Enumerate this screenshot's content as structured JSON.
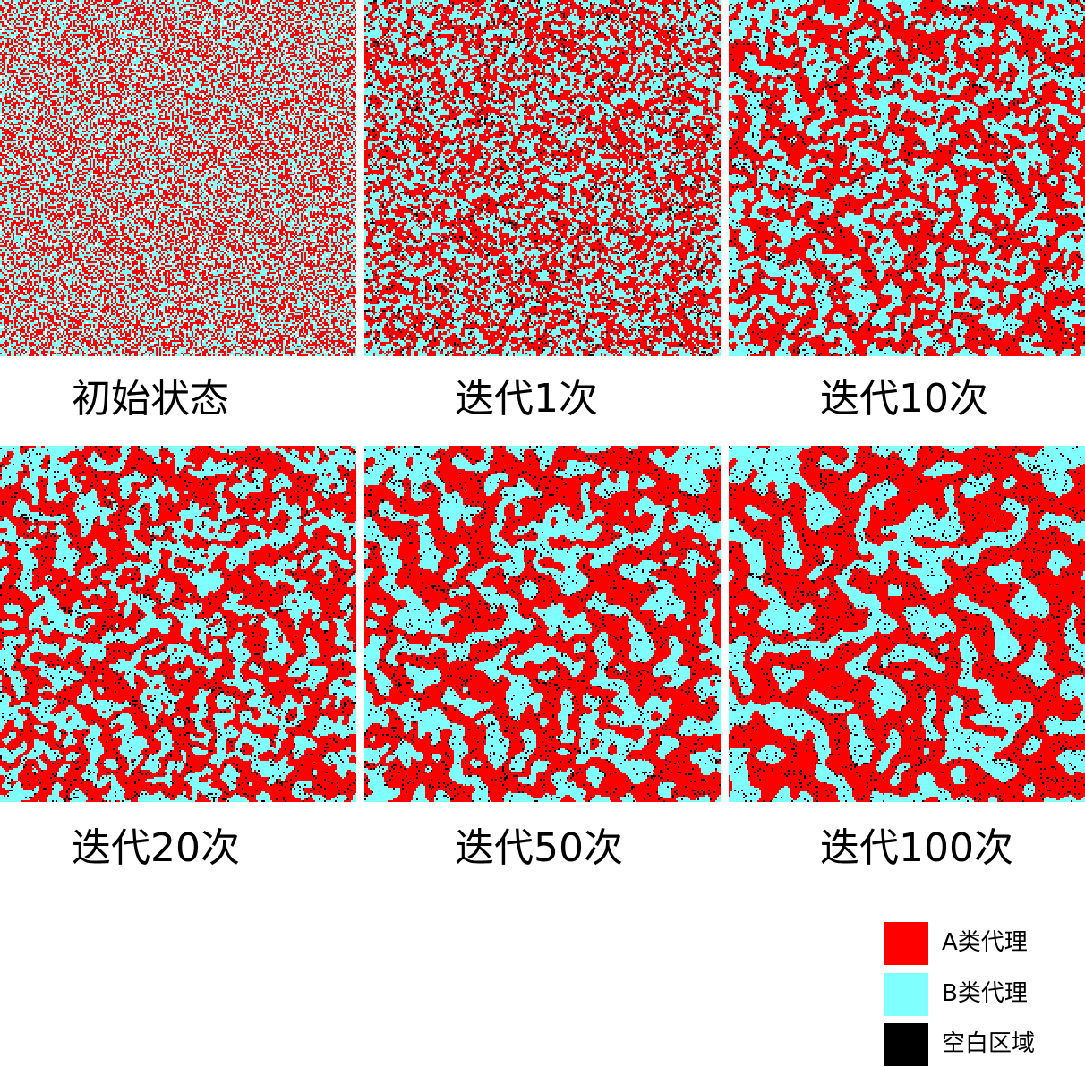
{
  "panels": [
    {
      "caption": "初始状态",
      "iteration": 0
    },
    {
      "caption": "迭代1次",
      "iteration": 1
    },
    {
      "caption": "迭代10次",
      "iteration": 10
    },
    {
      "caption": "迭代20次",
      "iteration": 20
    },
    {
      "caption": "迭代50次",
      "iteration": 50
    },
    {
      "caption": "迭代100次",
      "iteration": 100
    }
  ],
  "legend": [
    {
      "label": "A类代理",
      "color": "#ff0000"
    },
    {
      "label": "B类代理",
      "color": "#80ffff"
    },
    {
      "label": "空白区域",
      "color": "#000000"
    }
  ],
  "colors": {
    "agent_a": "#ff0000",
    "agent_b": "#80ffff",
    "empty": "#000000",
    "initial_empty": "#ffffff"
  }
}
